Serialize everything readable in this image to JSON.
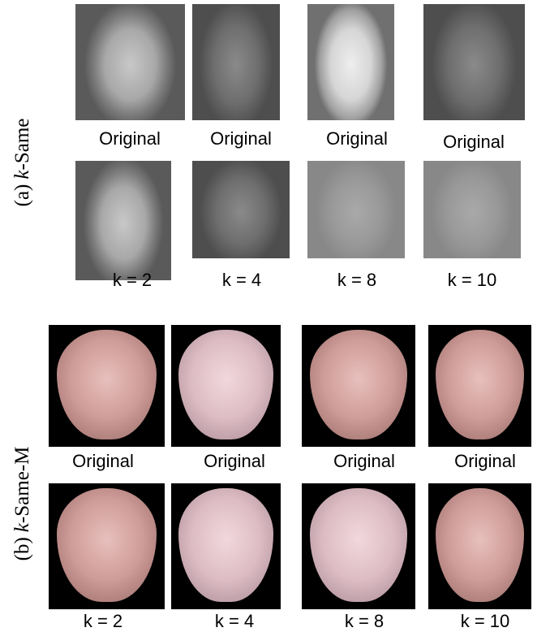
{
  "panels": [
    {
      "label": {
        "prefix": "(a)",
        "k": "k",
        "suffix": "-Same"
      },
      "originals": [
        "Original",
        "Original",
        "Original",
        "Original"
      ],
      "anonymized": [
        "k = 2",
        "k = 4",
        "k = 8",
        "k = 10"
      ]
    },
    {
      "label": {
        "prefix": "(b)",
        "k": "k",
        "suffix": "-Same-M"
      },
      "originals": [
        "Original",
        "Original",
        "Original",
        "Original"
      ],
      "anonymized": [
        "k = 2",
        "k = 4",
        "k = 8",
        "k = 10"
      ]
    }
  ]
}
